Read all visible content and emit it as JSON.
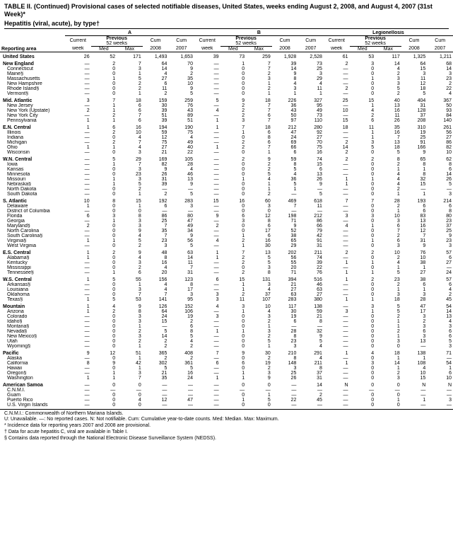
{
  "title": "TABLE II. (Continued) Provisional cases of selected notifiable diseases, United States, weeks ending August 2, 2008, and August 4, 2007 (31st Week)*",
  "subheader": "Hepatitis (viral, acute), by type†",
  "disease_groups": [
    "A",
    "B",
    "Legionellosis"
  ],
  "col_sub1": [
    "Current",
    "Previous",
    "Cum",
    "Cum"
  ],
  "col_sub2_a": [
    "week",
    "52 weeks",
    "2008",
    "2007"
  ],
  "col_sub3": [
    "Reporting area",
    "week",
    "Med",
    "Max",
    "2008",
    "2007",
    "week",
    "Med",
    "Max",
    "2008",
    "2007",
    "week",
    "Med",
    "Max",
    "2008",
    "2007"
  ],
  "rows": [
    {
      "t": "s",
      "area": "United States",
      "v": [
        "26",
        "52",
        "171",
        "1,493",
        "1,653",
        "39",
        "73",
        "259",
        "1,928",
        "2,528",
        "61",
        "53",
        "117",
        "1,325",
        "1,211"
      ]
    },
    {
      "t": "s",
      "area": "New England",
      "v": [
        "—",
        "2",
        "7",
        "64",
        "70",
        "—",
        "1",
        "7",
        "39",
        "73",
        "2",
        "3",
        "14",
        "64",
        "68"
      ]
    },
    {
      "t": "i",
      "area": "Connecticut",
      "v": [
        "—",
        "0",
        "3",
        "14",
        "9",
        "—",
        "0",
        "7",
        "14",
        "25",
        "—",
        "0",
        "4",
        "15",
        "14"
      ]
    },
    {
      "t": "i",
      "area": "Maine§",
      "v": [
        "—",
        "0",
        "1",
        "4",
        "2",
        "—",
        "0",
        "2",
        "9",
        "3",
        "—",
        "0",
        "2",
        "3",
        "3"
      ]
    },
    {
      "t": "i",
      "area": "Massachusetts",
      "v": [
        "—",
        "1",
        "5",
        "27",
        "35",
        "—",
        "0",
        "3",
        "8",
        "29",
        "—",
        "1",
        "3",
        "11",
        "23"
      ]
    },
    {
      "t": "i",
      "area": "New Hampshire",
      "v": [
        "—",
        "0",
        "2",
        "6",
        "10",
        "—",
        "0",
        "1",
        "4",
        "4",
        "—",
        "0",
        "3",
        "12",
        "2"
      ]
    },
    {
      "t": "i",
      "area": "Rhode Island§",
      "v": [
        "—",
        "0",
        "2",
        "11",
        "9",
        "—",
        "0",
        "2",
        "3",
        "11",
        "2",
        "0",
        "5",
        "18",
        "22"
      ]
    },
    {
      "t": "i",
      "area": "Vermont§",
      "v": [
        "—",
        "0",
        "1",
        "2",
        "5",
        "—",
        "0",
        "1",
        "1",
        "1",
        "—",
        "0",
        "2",
        "5",
        "4"
      ]
    },
    {
      "t": "s",
      "area": "Mid. Atlantic",
      "v": [
        "3",
        "7",
        "18",
        "159",
        "259",
        "5",
        "9",
        "18",
        "226",
        "327",
        "25",
        "15",
        "40",
        "404",
        "367"
      ]
    },
    {
      "t": "i",
      "area": "New Jersey",
      "v": [
        "—",
        "1",
        "6",
        "30",
        "76",
        "—",
        "2",
        "7",
        "36",
        "95",
        "—",
        "1",
        "13",
        "31",
        "50"
      ]
    },
    {
      "t": "i",
      "area": "New York (Upstate)",
      "v": [
        "2",
        "1",
        "6",
        "39",
        "43",
        "4",
        "2",
        "7",
        "43",
        "49",
        "10",
        "4",
        "16",
        "128",
        "93"
      ]
    },
    {
      "t": "i",
      "area": "New York City",
      "v": [
        "—",
        "2",
        "7",
        "51",
        "89",
        "—",
        "2",
        "6",
        "50",
        "73",
        "—",
        "2",
        "11",
        "37",
        "84"
      ]
    },
    {
      "t": "i",
      "area": "Pennsylvania",
      "v": [
        "1",
        "1",
        "6",
        "39",
        "51",
        "1",
        "3",
        "7",
        "97",
        "110",
        "15",
        "6",
        "26",
        "208",
        "140"
      ]
    },
    {
      "t": "s",
      "area": "E.N. Central",
      "v": [
        "1",
        "6",
        "16",
        "194",
        "190",
        "1",
        "7",
        "18",
        "212",
        "280",
        "18",
        "11",
        "35",
        "310",
        "261"
      ]
    },
    {
      "t": "i",
      "area": "Illinois",
      "v": [
        "—",
        "2",
        "10",
        "59",
        "75",
        "—",
        "1",
        "6",
        "47",
        "92",
        "—",
        "1",
        "16",
        "19",
        "56"
      ]
    },
    {
      "t": "i",
      "area": "Indiana",
      "v": [
        "—",
        "0",
        "4",
        "12",
        "4",
        "—",
        "0",
        "8",
        "24",
        "27",
        "—",
        "1",
        "7",
        "25",
        "27"
      ]
    },
    {
      "t": "i",
      "area": "Michigan",
      "v": [
        "—",
        "2",
        "7",
        "75",
        "49",
        "—",
        "2",
        "6",
        "69",
        "70",
        "2",
        "3",
        "13",
        "91",
        "86"
      ]
    },
    {
      "t": "i",
      "area": "Ohio",
      "v": [
        "1",
        "1",
        "4",
        "27",
        "40",
        "1",
        "2",
        "7",
        "66",
        "75",
        "14",
        "5",
        "18",
        "166",
        "82"
      ]
    },
    {
      "t": "i",
      "area": "Wisconsin",
      "v": [
        "—",
        "0",
        "3",
        "21",
        "22",
        "—",
        "0",
        "1",
        "6",
        "16",
        "2",
        "0",
        "5",
        "9",
        "10"
      ]
    },
    {
      "t": "s",
      "area": "W.N. Central",
      "v": [
        "—",
        "5",
        "29",
        "169",
        "105",
        "—",
        "2",
        "9",
        "59",
        "74",
        "2",
        "2",
        "8",
        "65",
        "62"
      ]
    },
    {
      "t": "i",
      "area": "Iowa",
      "v": [
        "—",
        "1",
        "7",
        "82",
        "28",
        "—",
        "0",
        "2",
        "8",
        "15",
        "—",
        "0",
        "2",
        "8",
        "8"
      ]
    },
    {
      "t": "i",
      "area": "Kansas",
      "v": [
        "—",
        "0",
        "3",
        "9",
        "4",
        "—",
        "0",
        "2",
        "5",
        "6",
        "—",
        "0",
        "1",
        "1",
        "6"
      ]
    },
    {
      "t": "i",
      "area": "Minnesota",
      "v": [
        "—",
        "0",
        "23",
        "26",
        "46",
        "—",
        "0",
        "5",
        "4",
        "13",
        "—",
        "0",
        "4",
        "8",
        "14"
      ]
    },
    {
      "t": "i",
      "area": "Missouri",
      "v": [
        "—",
        "1",
        "3",
        "31",
        "13",
        "—",
        "1",
        "4",
        "36",
        "26",
        "1",
        "1",
        "4",
        "32",
        "26"
      ]
    },
    {
      "t": "i",
      "area": "Nebraska§",
      "v": [
        "—",
        "1",
        "5",
        "39",
        "9",
        "—",
        "0",
        "1",
        "5",
        "9",
        "1",
        "0",
        "4",
        "15",
        "5"
      ]
    },
    {
      "t": "i",
      "area": "North Dakota",
      "v": [
        "—",
        "0",
        "2",
        "—",
        "—",
        "—",
        "0",
        "1",
        "1",
        "—",
        "—",
        "0",
        "2",
        "—",
        "—"
      ]
    },
    {
      "t": "i",
      "area": "South Dakota",
      "v": [
        "—",
        "0",
        "1",
        "2",
        "5",
        "—",
        "0",
        "2",
        "—",
        "5",
        "—",
        "0",
        "1",
        "1",
        "3"
      ]
    },
    {
      "t": "s",
      "area": "S. Atlantic",
      "v": [
        "10",
        "8",
        "15",
        "192",
        "283",
        "15",
        "16",
        "60",
        "469",
        "618",
        "7",
        "7",
        "28",
        "193",
        "214"
      ]
    },
    {
      "t": "i",
      "area": "Delaware",
      "v": [
        "1",
        "0",
        "1",
        "6",
        "3",
        "—",
        "0",
        "3",
        "7",
        "11",
        "—",
        "0",
        "2",
        "6",
        "6"
      ]
    },
    {
      "t": "i",
      "area": "District of Columbia",
      "v": [
        "—",
        "0",
        "0",
        "—",
        "—",
        "—",
        "0",
        "0",
        "—",
        "—",
        "—",
        "0",
        "1",
        "6",
        "8"
      ]
    },
    {
      "t": "i",
      "area": "Florida",
      "v": [
        "6",
        "3",
        "8",
        "86",
        "80",
        "9",
        "6",
        "12",
        "198",
        "212",
        "3",
        "3",
        "10",
        "83",
        "80"
      ]
    },
    {
      "t": "i",
      "area": "Georgia",
      "v": [
        "—",
        "1",
        "3",
        "25",
        "47",
        "—",
        "3",
        "8",
        "71",
        "86",
        "—",
        "0",
        "3",
        "13",
        "23"
      ]
    },
    {
      "t": "i",
      "area": "Maryland§",
      "v": [
        "2",
        "0",
        "3",
        "7",
        "49",
        "2",
        "0",
        "6",
        "9",
        "66",
        "4",
        "1",
        "6",
        "16",
        "37"
      ]
    },
    {
      "t": "i",
      "area": "North Carolina",
      "v": [
        "—",
        "0",
        "9",
        "35",
        "34",
        "—",
        "0",
        "17",
        "52",
        "79",
        "—",
        "0",
        "7",
        "12",
        "25"
      ]
    },
    {
      "t": "i",
      "area": "South Carolina§",
      "v": [
        "—",
        "0",
        "4",
        "7",
        "9",
        "—",
        "1",
        "6",
        "38",
        "42",
        "—",
        "0",
        "2",
        "7",
        "9"
      ]
    },
    {
      "t": "i",
      "area": "Virginia§",
      "v": [
        "1",
        "1",
        "5",
        "23",
        "56",
        "4",
        "2",
        "16",
        "65",
        "91",
        "—",
        "1",
        "6",
        "31",
        "23"
      ]
    },
    {
      "t": "i",
      "area": "West Virginia",
      "v": [
        "—",
        "0",
        "2",
        "3",
        "5",
        "—",
        "1",
        "30",
        "29",
        "31",
        "—",
        "0",
        "3",
        "9",
        "3"
      ]
    },
    {
      "t": "s",
      "area": "E.S. Central",
      "v": [
        "1",
        "2",
        "9",
        "48",
        "63",
        "1",
        "7",
        "13",
        "202",
        "211",
        "2",
        "2",
        "10",
        "76",
        "57"
      ]
    },
    {
      "t": "i",
      "area": "Alabama§",
      "v": [
        "1",
        "0",
        "4",
        "8",
        "14",
        "1",
        "2",
        "5",
        "56",
        "74",
        "—",
        "0",
        "2",
        "10",
        "6"
      ]
    },
    {
      "t": "i",
      "area": "Kentucky",
      "v": [
        "—",
        "0",
        "3",
        "16",
        "11",
        "—",
        "2",
        "5",
        "55",
        "39",
        "1",
        "1",
        "4",
        "38",
        "27"
      ]
    },
    {
      "t": "i",
      "area": "Mississippi",
      "v": [
        "—",
        "0",
        "2",
        "4",
        "7",
        "—",
        "0",
        "3",
        "20",
        "22",
        "—",
        "0",
        "1",
        "1",
        "—"
      ]
    },
    {
      "t": "i",
      "area": "Tennessee§",
      "v": [
        "—",
        "1",
        "6",
        "20",
        "31",
        "—",
        "2",
        "8",
        "71",
        "76",
        "1",
        "1",
        "5",
        "27",
        "24"
      ]
    },
    {
      "t": "s",
      "area": "W.S. Central",
      "v": [
        "1",
        "5",
        "55",
        "156",
        "123",
        "6",
        "15",
        "131",
        "394",
        "516",
        "1",
        "2",
        "23",
        "38",
        "57"
      ]
    },
    {
      "t": "i",
      "area": "Arkansas§",
      "v": [
        "—",
        "0",
        "1",
        "4",
        "8",
        "—",
        "1",
        "3",
        "21",
        "46",
        "—",
        "0",
        "2",
        "6",
        "6"
      ]
    },
    {
      "t": "i",
      "area": "Louisiana",
      "v": [
        "—",
        "0",
        "3",
        "4",
        "17",
        "—",
        "1",
        "4",
        "27",
        "63",
        "—",
        "0",
        "1",
        "1",
        "4"
      ]
    },
    {
      "t": "i",
      "area": "Oklahoma",
      "v": [
        "—",
        "0",
        "7",
        "7",
        "3",
        "3",
        "2",
        "37",
        "63",
        "27",
        "—",
        "0",
        "3",
        "3",
        "2"
      ]
    },
    {
      "t": "i",
      "area": "Texas§",
      "v": [
        "1",
        "5",
        "53",
        "141",
        "95",
        "3",
        "11",
        "107",
        "283",
        "380",
        "1",
        "1",
        "18",
        "28",
        "45"
      ]
    },
    {
      "t": "s",
      "area": "Mountain",
      "v": [
        "1",
        "4",
        "9",
        "126",
        "152",
        "4",
        "3",
        "10",
        "117",
        "138",
        "—",
        "3",
        "5",
        "47",
        "54"
      ]
    },
    {
      "t": "i",
      "area": "Arizona",
      "v": [
        "1",
        "2",
        "8",
        "64",
        "106",
        "—",
        "1",
        "4",
        "30",
        "59",
        "3",
        "1",
        "5",
        "17",
        "14"
      ]
    },
    {
      "t": "i",
      "area": "Colorado",
      "v": [
        "—",
        "0",
        "3",
        "24",
        "19",
        "3",
        "0",
        "3",
        "19",
        "21",
        "—",
        "0",
        "2",
        "3",
        "13"
      ]
    },
    {
      "t": "i",
      "area": "Idaho§",
      "v": [
        "—",
        "0",
        "3",
        "15",
        "2",
        "—",
        "0",
        "2",
        "6",
        "8",
        "—",
        "0",
        "1",
        "2",
        "4"
      ]
    },
    {
      "t": "i",
      "area": "Montana§",
      "v": [
        "—",
        "0",
        "1",
        "—",
        "6",
        "—",
        "0",
        "1",
        "—",
        "—",
        "—",
        "0",
        "1",
        "3",
        "3"
      ]
    },
    {
      "t": "i",
      "area": "Nevada§",
      "v": [
        "—",
        "0",
        "2",
        "5",
        "8",
        "1",
        "1",
        "3",
        "28",
        "32",
        "—",
        "0",
        "2",
        "6",
        "6"
      ]
    },
    {
      "t": "i",
      "area": "New Mexico§",
      "v": [
        "—",
        "0",
        "3",
        "14",
        "5",
        "—",
        "0",
        "2",
        "8",
        "9",
        "—",
        "0",
        "1",
        "3",
        "6"
      ]
    },
    {
      "t": "i",
      "area": "Utah",
      "v": [
        "—",
        "0",
        "2",
        "2",
        "4",
        "—",
        "0",
        "5",
        "23",
        "5",
        "—",
        "0",
        "3",
        "13",
        "5"
      ]
    },
    {
      "t": "i",
      "area": "Wyoming§",
      "v": [
        "—",
        "0",
        "1",
        "2",
        "2",
        "—",
        "0",
        "1",
        "3",
        "4",
        "—",
        "0",
        "0",
        "—",
        "3"
      ]
    },
    {
      "t": "s",
      "area": "Pacific",
      "v": [
        "9",
        "12",
        "51",
        "365",
        "408",
        "7",
        "9",
        "30",
        "210",
        "291",
        "1",
        "4",
        "18",
        "138",
        "71"
      ]
    },
    {
      "t": "i",
      "area": "Alaska",
      "v": [
        "—",
        "0",
        "1",
        "2",
        "2",
        "—",
        "0",
        "2",
        "8",
        "4",
        "—",
        "0",
        "1",
        "1",
        "—"
      ]
    },
    {
      "t": "i",
      "area": "California",
      "v": [
        "8",
        "9",
        "42",
        "302",
        "361",
        "6",
        "6",
        "19",
        "148",
        "211",
        "1",
        "3",
        "14",
        "108",
        "54"
      ]
    },
    {
      "t": "i",
      "area": "Hawaii",
      "v": [
        "—",
        "0",
        "1",
        "5",
        "5",
        "—",
        "0",
        "2",
        "3",
        "8",
        "—",
        "0",
        "1",
        "4",
        "1"
      ]
    },
    {
      "t": "i",
      "area": "Oregon§",
      "v": [
        "—",
        "1",
        "3",
        "21",
        "16",
        "—",
        "1",
        "3",
        "25",
        "37",
        "—",
        "0",
        "2",
        "10",
        "6"
      ]
    },
    {
      "t": "i",
      "area": "Washington",
      "v": [
        "1",
        "1",
        "7",
        "35",
        "24",
        "1",
        "1",
        "9",
        "26",
        "31",
        "—",
        "0",
        "3",
        "15",
        "10"
      ]
    },
    {
      "t": "s",
      "area": "American Samoa",
      "v": [
        "—",
        "0",
        "0",
        "—",
        "—",
        "—",
        "0",
        "0",
        "—",
        "14",
        "N",
        "0",
        "0",
        "N",
        "N"
      ]
    },
    {
      "t": "i",
      "area": "C.N.M.I.",
      "v": [
        "—",
        "—",
        "—",
        "—",
        "—",
        "—",
        "—",
        "—",
        "—",
        "—",
        "—",
        "—",
        "—",
        "—",
        "—"
      ]
    },
    {
      "t": "i",
      "area": "Guam",
      "v": [
        "—",
        "0",
        "0",
        "—",
        "—",
        "—",
        "0",
        "1",
        "—",
        "2",
        "—",
        "0",
        "0",
        "—",
        "—"
      ]
    },
    {
      "t": "i",
      "area": "Puerto Rico",
      "v": [
        "—",
        "0",
        "4",
        "12",
        "47",
        "—",
        "1",
        "5",
        "22",
        "45",
        "—",
        "0",
        "1",
        "1",
        "3"
      ]
    },
    {
      "t": "i",
      "area": "U.S. Virgin Islands",
      "v": [
        "—",
        "0",
        "0",
        "—",
        "—",
        "—",
        "0",
        "0",
        "—",
        "—",
        "—",
        "0",
        "0",
        "—",
        "—"
      ],
      "last": true
    }
  ],
  "footnotes": [
    "C.N.M.I.: Commonwealth of Northern Mariana Islands.",
    "U: Unavailable.   —: No reported cases.   N: Not notifiable.   Cum: Cumulative year-to-date counts.   Med: Median.   Max: Maximum.",
    "* Incidence data for reporting years 2007 and 2008 are provisional.",
    "† Data for acute hepatitis C, viral are available in Table I.",
    "§ Contains data reported through the National Electronic Disease Surveillance System (NEDSS)."
  ]
}
